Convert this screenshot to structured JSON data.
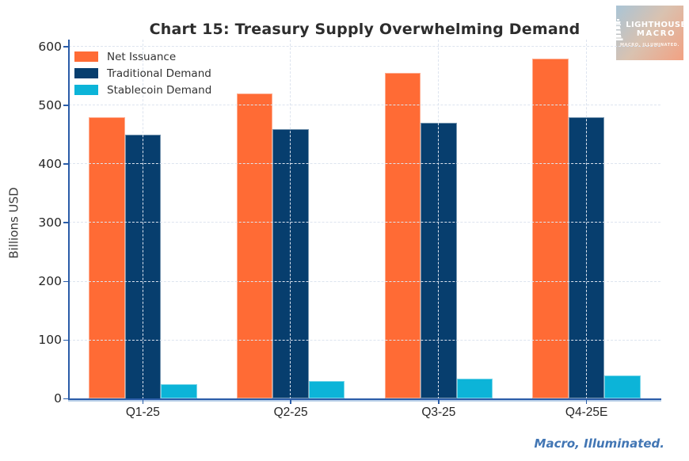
{
  "title": "Chart 15: Treasury Supply Overwhelming Demand",
  "footer": {
    "tagline": "Macro, Illuminated."
  },
  "logo": {
    "line1": "LIGHTHOUSE",
    "line2": "MACRO",
    "tagline": "MACRO, ILLUMINATED."
  },
  "colors": {
    "net_issuance": "#FF6B35",
    "traditional_demand": "#073E6E",
    "stablecoin_demand": "#0CB4D8",
    "axis": "#2A5CA8",
    "gridline": "#DDE4EF",
    "footer_text": "#4276B4",
    "title_text": "#2D2D2D"
  },
  "chart_data": {
    "type": "bar",
    "title": "Chart 15: Treasury Supply Overwhelming Demand",
    "xlabel": "",
    "ylabel": "Billions USD",
    "ylim": [
      0,
      600
    ],
    "yticks": [
      0,
      100,
      200,
      300,
      400,
      500,
      600
    ],
    "categories": [
      "Q1-25",
      "Q2-25",
      "Q3-25",
      "Q4-25E"
    ],
    "series": [
      {
        "name": "Net Issuance",
        "color": "#FF6B35",
        "values": [
          480,
          520,
          555,
          580
        ]
      },
      {
        "name": "Traditional Demand",
        "color": "#073E6E",
        "values": [
          450,
          460,
          470,
          480
        ]
      },
      {
        "name": "Stablecoin Demand",
        "color": "#0CB4D8",
        "values": [
          25,
          30,
          35,
          40
        ]
      }
    ],
    "grid": "dashed",
    "legend_position": "upper-left"
  }
}
